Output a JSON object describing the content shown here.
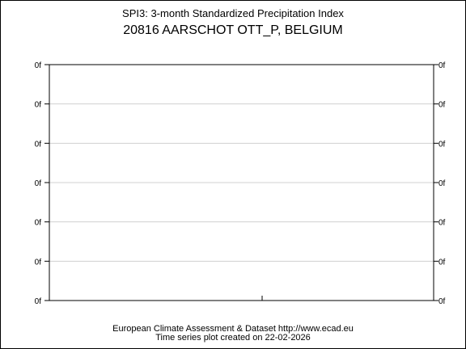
{
  "chart_data": {
    "type": "line",
    "title": "SPI3: 3-month Standardized Precipitation Index",
    "subtitle": "20816 AARSCHOT OTT_P, BELGIUM",
    "y_tick_labels": [
      "0f",
      "0f",
      "0f",
      "0f",
      "0f",
      "0f",
      "0f"
    ],
    "series": [],
    "grid": true,
    "footer_line1": "European Climate Assessment & Dataset  http://www.ecad.eu",
    "footer_line2": "Time series plot created on 22-02-2026",
    "colors": {
      "frame": "#000000",
      "grid": "#d0d0d0",
      "background": "#ffffff"
    }
  }
}
